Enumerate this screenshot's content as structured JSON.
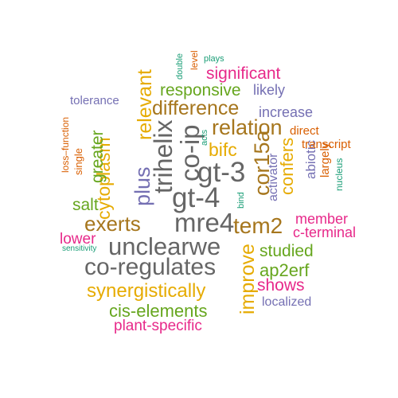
{
  "colors": {
    "teal": "#1b9e77",
    "orange": "#d95f02",
    "purple": "#7570b3",
    "magenta": "#e7298a",
    "green": "#66a61e",
    "gold": "#e6ab02",
    "brown": "#a6761d",
    "gray": "#666666"
  },
  "words": [
    {
      "id": "gt-4",
      "text": "gt-4",
      "color": "gray"
    },
    {
      "id": "gt-3",
      "text": "gt-3",
      "color": "gray"
    },
    {
      "id": "co-ip",
      "text": "co-ip",
      "color": "gray"
    },
    {
      "id": "trihelix",
      "text": "trihelix",
      "color": "gray"
    },
    {
      "id": "mre4",
      "text": "mre4",
      "color": "gray"
    },
    {
      "id": "unclearwe",
      "text": "unclearwe",
      "color": "gray"
    },
    {
      "id": "co-regulates",
      "text": "co-regulates",
      "color": "gray"
    },
    {
      "id": "plus",
      "text": "plus",
      "color": "purple"
    },
    {
      "id": "relation",
      "text": "relation",
      "color": "brown"
    },
    {
      "id": "difference",
      "text": "difference",
      "color": "brown"
    },
    {
      "id": "tem2",
      "text": "tem2",
      "color": "brown"
    },
    {
      "id": "exerts",
      "text": "exerts",
      "color": "brown"
    },
    {
      "id": "cor15a",
      "text": "cor15a",
      "color": "brown"
    },
    {
      "id": "bifc",
      "text": "bifc",
      "color": "gold"
    },
    {
      "id": "relevant",
      "text": "relevant",
      "color": "gold"
    },
    {
      "id": "cytoplasm",
      "text": "cytoplasm",
      "color": "gold"
    },
    {
      "id": "confers",
      "text": "confers",
      "color": "gold"
    },
    {
      "id": "improve",
      "text": "improve",
      "color": "gold"
    },
    {
      "id": "synergistically",
      "text": "synergistically",
      "color": "gold"
    },
    {
      "id": "responsive",
      "text": "responsive",
      "color": "green"
    },
    {
      "id": "greater",
      "text": "greater",
      "color": "green"
    },
    {
      "id": "salt",
      "text": "salt",
      "color": "green"
    },
    {
      "id": "studied",
      "text": "studied",
      "color": "green"
    },
    {
      "id": "ap2erf",
      "text": "ap2erf",
      "color": "green"
    },
    {
      "id": "cis-elements",
      "text": "cis-elements",
      "color": "green"
    },
    {
      "id": "significant",
      "text": "significant",
      "color": "magenta"
    },
    {
      "id": "member",
      "text": "member",
      "color": "magenta"
    },
    {
      "id": "c-terminal",
      "text": "c-terminal",
      "color": "magenta"
    },
    {
      "id": "lower",
      "text": "lower",
      "color": "magenta"
    },
    {
      "id": "shows",
      "text": "shows",
      "color": "magenta"
    },
    {
      "id": "plant-specific",
      "text": "plant-specific",
      "color": "magenta"
    },
    {
      "id": "likely",
      "text": "likely",
      "color": "purple"
    },
    {
      "id": "tolerance",
      "text": "tolerance",
      "color": "purple"
    },
    {
      "id": "increase",
      "text": "increase",
      "color": "purple"
    },
    {
      "id": "activator",
      "text": "activator",
      "color": "purple"
    },
    {
      "id": "abiotic",
      "text": "abiotic",
      "color": "purple"
    },
    {
      "id": "localized",
      "text": "localized",
      "color": "purple"
    },
    {
      "id": "direct",
      "text": "direct",
      "color": "orange"
    },
    {
      "id": "transcript",
      "text": "transcript",
      "color": "orange"
    },
    {
      "id": "largely",
      "text": "largely",
      "color": "orange"
    },
    {
      "id": "level",
      "text": "level",
      "color": "orange"
    },
    {
      "id": "loss-function",
      "text": "loss–function",
      "color": "orange"
    },
    {
      "id": "single",
      "text": "single",
      "color": "orange"
    },
    {
      "id": "double",
      "text": "double",
      "color": "teal"
    },
    {
      "id": "plays",
      "text": "plays",
      "color": "teal"
    },
    {
      "id": "acts",
      "text": "acts",
      "color": "teal"
    },
    {
      "id": "bind",
      "text": "bind",
      "color": "teal"
    },
    {
      "id": "nucleus",
      "text": "nucleus",
      "color": "teal"
    },
    {
      "id": "sensitivity",
      "text": "sensitivity",
      "color": "teal"
    }
  ]
}
